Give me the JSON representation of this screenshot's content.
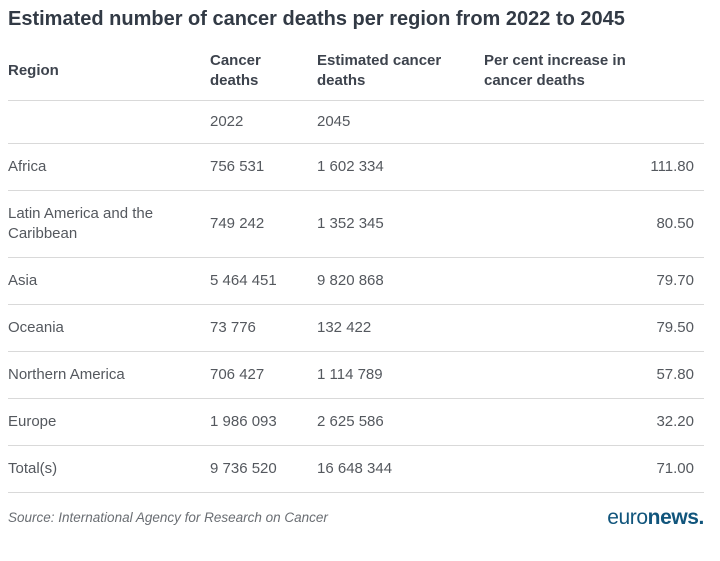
{
  "title": "Estimated number of cancer deaths per region from 2022 to 2045",
  "table": {
    "headers": {
      "region": "Region",
      "deaths": "Cancer deaths",
      "estimated": "Estimated cancer deaths",
      "increase": "Per cent increase in cancer deaths"
    },
    "subheaders": {
      "deaths_year": "2022",
      "estimated_year": "2045"
    },
    "rows": [
      {
        "region": "Africa",
        "deaths_2022": "756 531",
        "estimated_2045": "1 602 334",
        "increase": "111.80"
      },
      {
        "region": "Latin America and the Caribbean",
        "deaths_2022": "749 242",
        "estimated_2045": "1 352 345",
        "increase": "80.50"
      },
      {
        "region": "Asia",
        "deaths_2022": "5 464 451",
        "estimated_2045": "9 820 868",
        "increase": "79.70"
      },
      {
        "region": "Oceania",
        "deaths_2022": "73 776",
        "estimated_2045": "132 422",
        "increase": "79.50"
      },
      {
        "region": "Northern America",
        "deaths_2022": "706 427",
        "estimated_2045": "1 114 789",
        "increase": "57.80"
      },
      {
        "region": "Europe",
        "deaths_2022": "1 986 093",
        "estimated_2045": "2 625 586",
        "increase": "32.20"
      },
      {
        "region": "Total(s)",
        "deaths_2022": "9 736 520",
        "estimated_2045": "16 648 344",
        "increase": "71.00"
      }
    ]
  },
  "footer": {
    "source": "Source: International Agency for Research on Cancer",
    "logo": {
      "euro": "euro",
      "news": "news."
    }
  },
  "colors": {
    "title_text": "#323a45",
    "header_text": "#3d434d",
    "body_text": "#54585e",
    "divider": "#d9d9d9",
    "source_text": "#6a6e73",
    "logo_blue": "#11557c"
  },
  "chart_data": {
    "type": "table",
    "title": "Estimated number of cancer deaths per region from 2022 to 2045",
    "columns": [
      "Region",
      "Cancer deaths (2022)",
      "Estimated cancer deaths (2045)",
      "Per cent increase in cancer deaths"
    ],
    "rows": [
      [
        "Africa",
        756531,
        1602334,
        111.8
      ],
      [
        "Latin America and the Caribbean",
        749242,
        1352345,
        80.5
      ],
      [
        "Asia",
        5464451,
        9820868,
        79.7
      ],
      [
        "Oceania",
        73776,
        132422,
        79.5
      ],
      [
        "Northern America",
        706427,
        1114789,
        57.8
      ],
      [
        "Europe",
        1986093,
        2625586,
        32.2
      ],
      [
        "Total(s)",
        9736520,
        16648344,
        71.0
      ]
    ],
    "source": "International Agency for Research on Cancer"
  }
}
